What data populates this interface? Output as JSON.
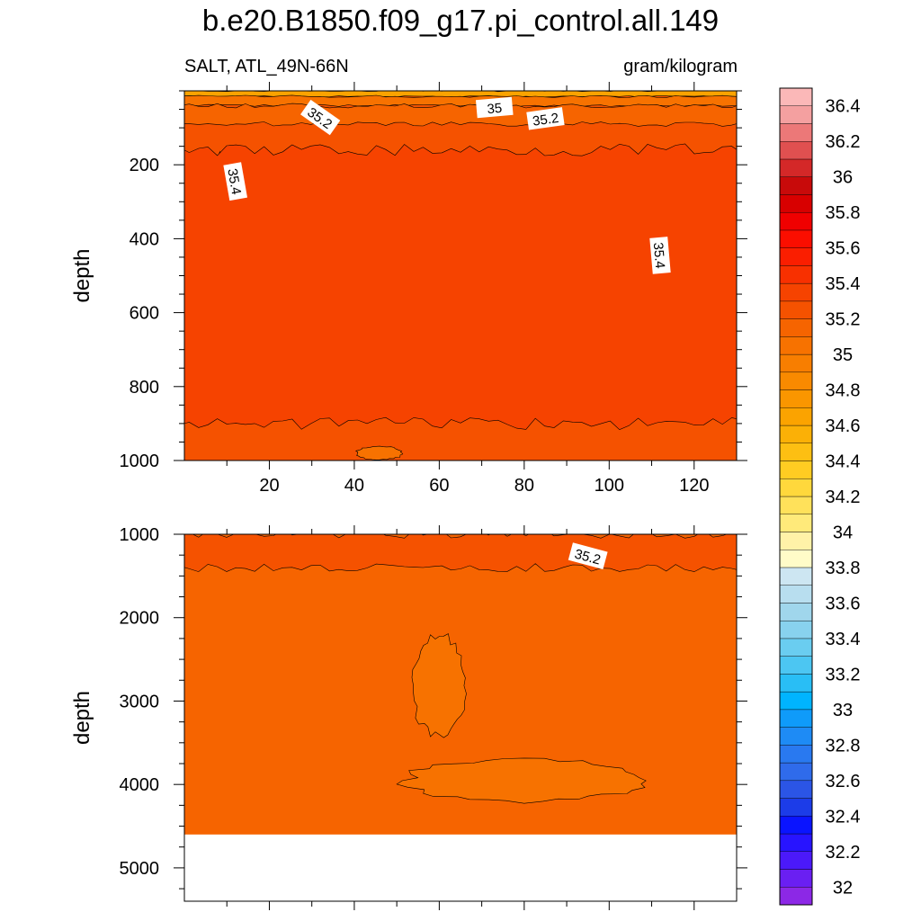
{
  "figure": {
    "title": "b.e20.B1850.f09_g17.pi_control.all.149",
    "subtitle_left": "SALT, ATL_49N-66N",
    "subtitle_right": "gram/kilogram"
  },
  "chart_data": [
    {
      "type": "heatmap",
      "panel": "upper",
      "title": "b.e20.B1850.f09_g17.pi_control.all.149",
      "xlabel": "",
      "ylabel": "depth",
      "xlim": [
        0,
        130
      ],
      "ylim": [
        1000,
        0
      ],
      "y_reversed": true,
      "xticks": [
        20,
        40,
        60,
        80,
        100,
        120
      ],
      "yticks": [
        200,
        400,
        600,
        800,
        1000
      ],
      "background_value": 35.2,
      "contour_labels": [
        "35.2",
        "35",
        "35.2",
        "35.4",
        "35.4"
      ],
      "regions": [
        {
          "value": 34.6,
          "x": [
            1,
            129
          ],
          "y": [
            0,
            15
          ]
        },
        {
          "value": 35.0,
          "x": [
            1,
            129
          ],
          "y": [
            15,
            40
          ]
        },
        {
          "value": 35.1,
          "x": [
            1,
            129
          ],
          "y": [
            40,
            90
          ]
        },
        {
          "value": 35.4,
          "x": [
            2,
            13
          ],
          "y": [
            160,
            560
          ]
        },
        {
          "value": 35.4,
          "x": [
            111,
            129
          ],
          "y": [
            200,
            510
          ]
        },
        {
          "value": 35.3,
          "x": [
            1,
            129
          ],
          "y": [
            160,
            900
          ]
        },
        {
          "value": 35.0,
          "x": [
            40,
            52
          ],
          "y": [
            960,
            1000
          ]
        }
      ]
    },
    {
      "type": "heatmap",
      "panel": "lower",
      "xlabel": "",
      "ylabel": "depth",
      "xlim": [
        0,
        130
      ],
      "ylim": [
        5400,
        1000
      ],
      "y_reversed": true,
      "yticks": [
        1000,
        2000,
        3000,
        4000,
        5000
      ],
      "background_value": 35.1,
      "no_data_below": 4600,
      "contour_labels": [
        "35.2"
      ],
      "regions": [
        {
          "value": 35.2,
          "x": [
            1,
            129
          ],
          "y": [
            1000,
            1400
          ]
        },
        {
          "value": 35.0,
          "x": [
            53,
            67
          ],
          "y": [
            2150,
            3480
          ]
        },
        {
          "value": 35.0,
          "x": [
            49,
            111
          ],
          "y": [
            3680,
            4230
          ]
        }
      ]
    },
    {
      "type": "colorbar",
      "levels": [
        32,
        32.2,
        32.4,
        32.6,
        32.8,
        33,
        33.2,
        33.4,
        33.6,
        33.8,
        34,
        34.2,
        34.4,
        34.6,
        34.8,
        35,
        35.2,
        35.4,
        35.6,
        35.8,
        36,
        36.2,
        36.4
      ],
      "labels": [
        "32",
        "32.2",
        "32.4",
        "32.6",
        "32.8",
        "33",
        "33.2",
        "33.4",
        "33.6",
        "33.8",
        "34",
        "34.2",
        "34.4",
        "34.6",
        "34.8",
        "35",
        "35.2",
        "35.4",
        "35.6",
        "35.8",
        "36",
        "36.2",
        "36.4"
      ],
      "colors": [
        "#8C28E6",
        "#6A1FF2",
        "#4B19FA",
        "#2814FF",
        "#0A14FF",
        "#1C3CE8",
        "#2B55E6",
        "#2F6BEB",
        "#2979F0",
        "#1E8BF5",
        "#0F9BFA",
        "#00B4FF",
        "#29BEF5",
        "#4CC6F2",
        "#6ACDF0",
        "#88D2EE",
        "#A0D6EC",
        "#B8DEEF",
        "#CDE6F2",
        "#FFFCC8",
        "#FFF2A8",
        "#FFEA7A",
        "#FFE15A",
        "#FFD83C",
        "#FFCC22",
        "#FDBF12",
        "#FBB006",
        "#FBA300",
        "#FA9600",
        "#F98A00",
        "#F87E00",
        "#F77200",
        "#F66400",
        "#F55200",
        "#F64300",
        "#F83000",
        "#FA1E00",
        "#FB0E00",
        "#F00000",
        "#D80000",
        "#C80A0A",
        "#D42828",
        "#E05050",
        "#EC7878",
        "#F4A0A0",
        "#FBB8B8"
      ]
    }
  ]
}
